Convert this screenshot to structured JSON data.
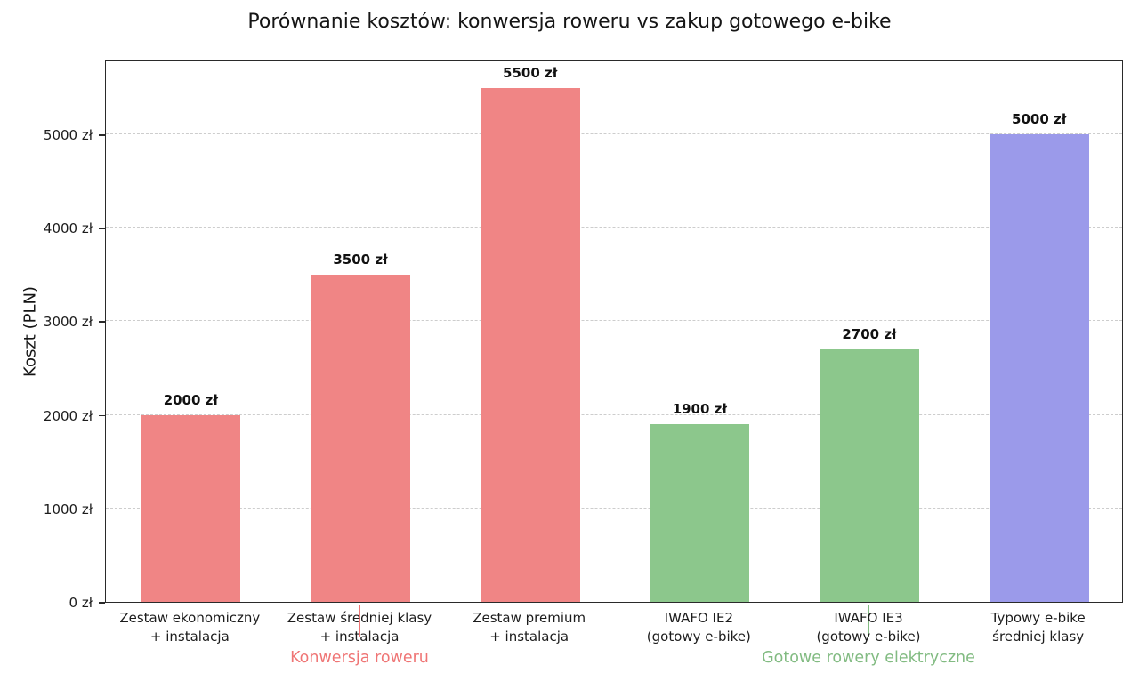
{
  "title": "Porównanie kosztów: konwersja roweru vs zakup gotowego e-bike",
  "chart_data": {
    "type": "bar",
    "title": "Porównanie kosztów: konwersja roweru vs zakup gotowego e-bike",
    "xlabel": "",
    "ylabel": "Koszt (PLN)",
    "ylim": [
      0,
      5800
    ],
    "grid": "horizontal-dashed",
    "legend": "none",
    "yticks": [
      {
        "value": 0,
        "label": "0 zł"
      },
      {
        "value": 1000,
        "label": "1000 zł"
      },
      {
        "value": 2000,
        "label": "2000 zł"
      },
      {
        "value": 3000,
        "label": "3000 zł"
      },
      {
        "value": 4000,
        "label": "4000 zł"
      },
      {
        "value": 5000,
        "label": "5000 zł"
      }
    ],
    "categories": [
      "Zestaw ekonomiczny + instalacja",
      "Zestaw średniej klasy + instalacja",
      "Zestaw premium + instalacja",
      "IWAFO IE2 (gotowy e-bike)",
      "IWAFO IE3 (gotowy e-bike)",
      "Typowy e-bike średniej klasy"
    ],
    "values": [
      2000,
      3500,
      5500,
      1900,
      2700,
      5000
    ],
    "bars": [
      {
        "category_lines": [
          "Zestaw ekonomiczny",
          "+ instalacja"
        ],
        "value": 2000,
        "value_label": "2000 zł",
        "color": "#f08585"
      },
      {
        "category_lines": [
          "Zestaw średniej klasy",
          "+ instalacja"
        ],
        "value": 3500,
        "value_label": "3500 zł",
        "color": "#f08585"
      },
      {
        "category_lines": [
          "Zestaw premium",
          "+ instalacja"
        ],
        "value": 5500,
        "value_label": "5500 zł",
        "color": "#f08585"
      },
      {
        "category_lines": [
          "IWAFO IE2",
          "(gotowy e-bike)"
        ],
        "value": 1900,
        "value_label": "1900 zł",
        "color": "#8cc78c"
      },
      {
        "category_lines": [
          "IWAFO IE3",
          "(gotowy e-bike)"
        ],
        "value": 2700,
        "value_label": "2700 zł",
        "color": "#8cc78c"
      },
      {
        "category_lines": [
          "Typowy e-bike",
          "średniej klasy"
        ],
        "value": 5000,
        "value_label": "5000 zł",
        "color": "#9b9aea"
      }
    ],
    "groups": [
      {
        "label": "Konwersja roweru",
        "color": "#ef7575",
        "bar_index": 1
      },
      {
        "label": "Gotowe rowery elektryczne",
        "color": "#82bb82",
        "bar_index": 4
      }
    ]
  }
}
